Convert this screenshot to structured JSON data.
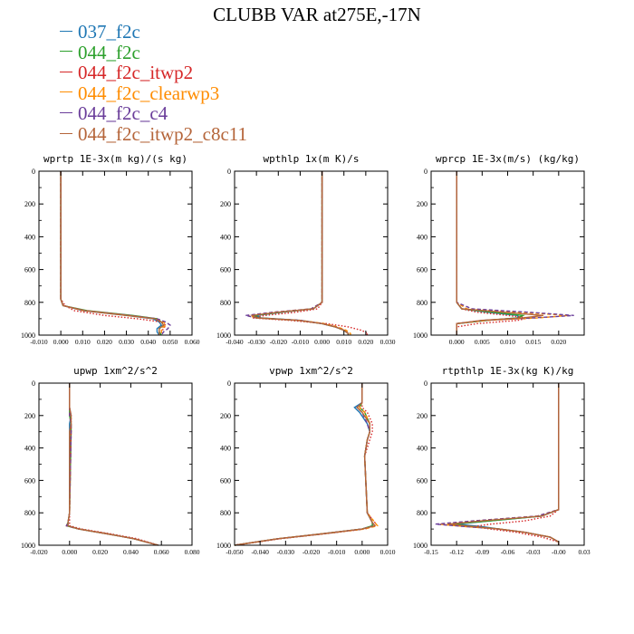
{
  "title": "CLUBB VAR at275E,-17N",
  "legend": [
    {
      "name": "037_f2c",
      "color": "#1f77b4",
      "dash": "solid"
    },
    {
      "name": "044_f2c",
      "color": "#2ca02c",
      "dash": "solid"
    },
    {
      "name": "044_f2c_itwp2",
      "color": "#d62728",
      "dash": "dotted"
    },
    {
      "name": "044_f2c_clearwp3",
      "color": "#ff8c00",
      "dash": "dashed"
    },
    {
      "name": "044_f2c_c4",
      "color": "#6a3d9a",
      "dash": "dashed"
    },
    {
      "name": "044_f2c_itwp2_c8c11",
      "color": "#b5653a",
      "dash": "solid"
    }
  ],
  "chart_data": [
    {
      "type": "line",
      "title": "wprtp   1E-3x(m kg)/(s kg)",
      "xlim": [
        -0.01,
        0.06
      ],
      "ylim": [
        1000,
        0
      ],
      "xticks": [
        "-0.010",
        "0.000",
        "0.010",
        "0.020",
        "0.030",
        "0.040",
        "0.050",
        "0.060"
      ],
      "xtick_values": [
        -0.01,
        0.0,
        0.01,
        0.02,
        0.03,
        0.04,
        0.05,
        0.06
      ],
      "yticks": [
        "0",
        "200",
        "400",
        "600",
        "800",
        "1000"
      ],
      "y": [
        0,
        780,
        820,
        850,
        880,
        900,
        920,
        940,
        960,
        980,
        1000
      ],
      "series": [
        {
          "values": [
            0,
            0,
            0.001,
            0.01,
            0.03,
            0.042,
            0.045,
            0.046,
            0.044,
            0.044,
            0.045
          ]
        },
        {
          "values": [
            0,
            0,
            0.001,
            0.012,
            0.033,
            0.044,
            0.046,
            0.047,
            0.045,
            0.045,
            0.046
          ]
        },
        {
          "values": [
            0,
            0,
            0.002,
            0.006,
            0.02,
            0.035,
            0.046,
            0.048,
            0.047,
            0.046,
            0.046
          ]
        },
        {
          "values": [
            0,
            0,
            0.001,
            0.01,
            0.03,
            0.043,
            0.047,
            0.048,
            0.046,
            0.046,
            0.046
          ]
        },
        {
          "values": [
            0,
            0,
            0.001,
            0.011,
            0.032,
            0.044,
            0.048,
            0.05,
            0.049,
            0.047,
            0.046
          ]
        },
        {
          "values": [
            0,
            0,
            0.001,
            0.011,
            0.031,
            0.043,
            0.046,
            0.047,
            0.045,
            0.045,
            0.045
          ]
        }
      ]
    },
    {
      "type": "line",
      "title": "wpthlp   1x(m K)/s",
      "xlim": [
        -0.04,
        0.03
      ],
      "ylim": [
        1000,
        0
      ],
      "xticks": [
        "-0.040",
        "-0.030",
        "-0.020",
        "-0.010",
        "0.000",
        "0.010",
        "0.020",
        "0.030"
      ],
      "xtick_values": [
        -0.04,
        -0.03,
        -0.02,
        -0.01,
        0.0,
        0.01,
        0.02,
        0.03
      ],
      "yticks": [
        "0",
        "200",
        "400",
        "600",
        "800",
        "1000"
      ],
      "y": [
        0,
        800,
        840,
        860,
        880,
        895,
        910,
        930,
        950,
        970,
        990,
        1000
      ],
      "series": [
        {
          "values": [
            0,
            0,
            -0.004,
            -0.018,
            -0.03,
            -0.028,
            -0.01,
            0.0,
            0.006,
            0.01,
            0.012,
            0.012
          ]
        },
        {
          "values": [
            0,
            0,
            -0.004,
            -0.019,
            -0.031,
            -0.029,
            -0.011,
            0.0,
            0.006,
            0.01,
            0.012,
            0.012
          ]
        },
        {
          "values": [
            0,
            0,
            -0.002,
            -0.012,
            -0.026,
            -0.032,
            -0.015,
            0.002,
            0.012,
            0.018,
            0.021,
            0.02
          ]
        },
        {
          "values": [
            0,
            0,
            -0.005,
            -0.022,
            -0.034,
            -0.03,
            -0.01,
            0.001,
            0.007,
            0.011,
            0.013,
            0.013
          ]
        },
        {
          "values": [
            0,
            0,
            -0.005,
            -0.022,
            -0.035,
            -0.03,
            -0.01,
            0.0,
            0.006,
            0.01,
            0.012,
            0.012
          ]
        },
        {
          "values": [
            0,
            0,
            -0.004,
            -0.02,
            -0.032,
            -0.03,
            -0.011,
            0.0,
            0.006,
            0.01,
            0.012,
            0.012
          ]
        }
      ]
    },
    {
      "type": "line",
      "title": "wprcp   1E-3x(m/s) (kg/kg)",
      "xlim": [
        -0.005,
        0.025
      ],
      "ylim": [
        1000,
        0
      ],
      "xticks": [
        "0.000",
        "0.005",
        "0.010",
        "0.015",
        "0.020"
      ],
      "xtick_values": [
        0.0,
        0.005,
        0.01,
        0.015,
        0.02
      ],
      "yticks": [
        "0",
        "200",
        "400",
        "600",
        "800",
        "1000"
      ],
      "y": [
        0,
        800,
        840,
        860,
        880,
        895,
        910,
        930,
        950,
        970,
        1000
      ],
      "series": [
        {
          "values": [
            0,
            0,
            0.001,
            0.006,
            0.012,
            0.012,
            0.006,
            0.0,
            0,
            0,
            0
          ]
        },
        {
          "values": [
            0,
            0,
            0.001,
            0.007,
            0.013,
            0.012,
            0.006,
            0.0,
            0,
            0,
            0
          ]
        },
        {
          "values": [
            0,
            0,
            0.001,
            0.004,
            0.01,
            0.014,
            0.012,
            0.004,
            0.0,
            0,
            0
          ]
        },
        {
          "values": [
            0,
            0,
            0.002,
            0.012,
            0.022,
            0.016,
            0.006,
            0.0,
            0,
            0,
            0
          ]
        },
        {
          "values": [
            0,
            0,
            0.003,
            0.014,
            0.023,
            0.015,
            0.005,
            0.0,
            0,
            0,
            0
          ]
        },
        {
          "values": [
            0,
            0,
            0.001,
            0.009,
            0.017,
            0.013,
            0.005,
            0.0,
            0,
            0,
            0
          ]
        }
      ]
    },
    {
      "type": "line",
      "title": "upwp   1xm^2/s^2",
      "xlim": [
        -0.02,
        0.08
      ],
      "ylim": [
        1000,
        0
      ],
      "xticks": [
        "-0.020",
        "0.000",
        "0.020",
        "0.040",
        "0.060",
        "0.080"
      ],
      "xtick_values": [
        -0.02,
        0.0,
        0.02,
        0.04,
        0.06,
        0.08
      ],
      "yticks": [
        "0",
        "200",
        "400",
        "600",
        "800",
        "1000"
      ],
      "y": [
        0,
        150,
        200,
        250,
        300,
        800,
        860,
        880,
        900,
        930,
        960,
        1000
      ],
      "series": [
        {
          "values": [
            0,
            0,
            0.001,
            0,
            0.0,
            0.0,
            -0.001,
            -0.001,
            0.006,
            0.025,
            0.042,
            0.058
          ]
        },
        {
          "values": [
            0,
            0,
            0.0,
            0.001,
            0.001,
            0.0,
            -0.001,
            -0.002,
            0.006,
            0.025,
            0.042,
            0.058
          ]
        },
        {
          "values": [
            0,
            0,
            0.001,
            0.001,
            0.001,
            0.0,
            0.0,
            0.0,
            0.008,
            0.027,
            0.044,
            0.058
          ]
        },
        {
          "values": [
            0,
            0,
            0.0,
            0.001,
            0.001,
            0.0,
            -0.001,
            -0.002,
            0.006,
            0.025,
            0.042,
            0.058
          ]
        },
        {
          "values": [
            0,
            0,
            0.0,
            0.001,
            0.001,
            0.0,
            -0.001,
            -0.002,
            0.006,
            0.025,
            0.042,
            0.058
          ]
        },
        {
          "values": [
            0,
            0,
            0.001,
            0.001,
            0.0,
            0.0,
            -0.001,
            -0.001,
            0.006,
            0.025,
            0.042,
            0.058
          ]
        }
      ]
    },
    {
      "type": "line",
      "title": "vpwp   1xm^2/s^2",
      "xlim": [
        -0.05,
        0.01
      ],
      "ylim": [
        1000,
        0
      ],
      "xticks": [
        "-0.050",
        "-0.040",
        "-0.030",
        "-0.020",
        "-0.010",
        "0.000",
        "0.010"
      ],
      "xtick_values": [
        -0.05,
        -0.04,
        -0.03,
        -0.02,
        -0.01,
        0.0,
        0.01
      ],
      "yticks": [
        "0",
        "200",
        "400",
        "600",
        "800",
        "1000"
      ],
      "y": [
        0,
        120,
        150,
        180,
        250,
        300,
        350,
        450,
        800,
        860,
        880,
        900,
        930,
        960,
        1000
      ],
      "series": [
        {
          "values": [
            0,
            0,
            -0.003,
            -0.001,
            0.002,
            0.003,
            0.002,
            0.001,
            0.002,
            0.004,
            0.004,
            0.0,
            -0.016,
            -0.033,
            -0.05
          ]
        },
        {
          "values": [
            0,
            0,
            -0.001,
            0.001,
            0.003,
            0.003,
            0.002,
            0.001,
            0.002,
            0.004,
            0.004,
            0.0,
            -0.016,
            -0.033,
            -0.05
          ]
        },
        {
          "values": [
            0,
            0,
            0.0,
            0.002,
            0.004,
            0.004,
            0.003,
            0.001,
            0.002,
            0.005,
            0.005,
            0.001,
            -0.015,
            -0.032,
            -0.05
          ]
        },
        {
          "values": [
            0,
            0,
            -0.001,
            0.001,
            0.003,
            0.003,
            0.002,
            0.001,
            0.002,
            0.005,
            0.006,
            0.001,
            -0.016,
            -0.033,
            -0.05
          ]
        },
        {
          "values": [
            0,
            0,
            -0.002,
            0.0,
            0.002,
            0.003,
            0.002,
            0.001,
            0.002,
            0.004,
            0.005,
            0.0,
            -0.016,
            -0.033,
            -0.05
          ]
        },
        {
          "values": [
            0,
            0,
            -0.002,
            0.0,
            0.003,
            0.003,
            0.002,
            0.001,
            0.002,
            0.004,
            0.005,
            0.0,
            -0.016,
            -0.033,
            -0.05
          ]
        }
      ]
    },
    {
      "type": "line",
      "title": "rtpthlp   1E-3x(kg K)/kg",
      "xlim": [
        -0.15,
        0.03
      ],
      "ylim": [
        1000,
        0
      ],
      "xticks": [
        "-0.15",
        "-0.12",
        "-0.09",
        "-0.06",
        "-0.03",
        "-0.00",
        "0.03"
      ],
      "xtick_values": [
        -0.15,
        -0.12,
        -0.09,
        -0.06,
        -0.03,
        0.0,
        0.03
      ],
      "yticks": [
        "0",
        "200",
        "400",
        "600",
        "800",
        "1000"
      ],
      "y": [
        0,
        780,
        820,
        850,
        870,
        885,
        900,
        920,
        950,
        980,
        1000
      ],
      "series": [
        {
          "values": [
            0,
            0,
            -0.02,
            -0.08,
            -0.12,
            -0.09,
            -0.07,
            -0.04,
            -0.01,
            0.0,
            0.0
          ]
        },
        {
          "values": [
            0,
            0,
            -0.02,
            -0.08,
            -0.125,
            -0.1,
            -0.07,
            -0.04,
            -0.01,
            0.0,
            0.0
          ]
        },
        {
          "values": [
            0,
            0,
            -0.01,
            -0.04,
            -0.08,
            -0.1,
            -0.08,
            -0.05,
            -0.02,
            0.0,
            0.0
          ]
        },
        {
          "values": [
            0,
            0,
            -0.025,
            -0.1,
            -0.14,
            -0.11,
            -0.07,
            -0.04,
            -0.01,
            0.0,
            0.0
          ]
        },
        {
          "values": [
            0,
            0,
            -0.025,
            -0.1,
            -0.145,
            -0.11,
            -0.07,
            -0.04,
            -0.01,
            0.0,
            0.0
          ]
        },
        {
          "values": [
            0,
            0,
            -0.02,
            -0.09,
            -0.13,
            -0.1,
            -0.07,
            -0.04,
            -0.01,
            0.0,
            0.0
          ]
        }
      ]
    }
  ]
}
